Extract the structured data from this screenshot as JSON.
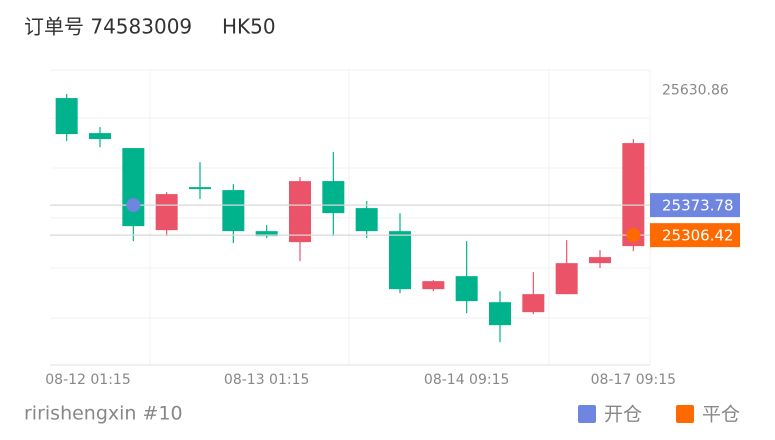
{
  "chart_data": {
    "type": "candlestick",
    "title": "订单号 74583009",
    "subtitle": "HK50",
    "footer": "ririshengxin #10",
    "categories": [
      "08-12 01:15",
      null,
      null,
      null,
      null,
      null,
      "08-13 01:15",
      null,
      null,
      null,
      null,
      null,
      "08-14 09:15",
      null,
      null,
      null,
      null,
      "08-17 09:15"
    ],
    "open": [
      25614.0,
      25535.4,
      25501.8,
      25317.6,
      25414.2,
      25407.5,
      25315.4,
      25290.7,
      25427.7,
      25367.1,
      25315.4,
      25185.2,
      25214.4,
      25156.0,
      25133.6,
      25174.0,
      25243.6,
      25281.8
    ],
    "close": [
      25533.2,
      25522.0,
      25326.6,
      25398.5,
      25409.7,
      25315.4,
      25304.2,
      25427.7,
      25355.8,
      25315.4,
      25185.2,
      25203.2,
      25158.3,
      25104.4,
      25174.0,
      25243.6,
      25257.1,
      25513.0
    ],
    "high": [
      25623.0,
      25548.9,
      25501.8,
      25403.0,
      25470.3,
      25420.9,
      25328.9,
      25436.7,
      25492.8,
      25382.8,
      25355.8,
      25205.4,
      25293.0,
      25180.7,
      25223.4,
      25295.2,
      25272.8,
      25522.0
    ],
    "low": [
      25517.5,
      25504.0,
      25293.0,
      25304.2,
      25387.3,
      25288.5,
      25299.7,
      25248.1,
      25304.2,
      25299.7,
      25176.2,
      25180.7,
      25131.3,
      25066.2,
      25129.1,
      25174.0,
      25232.4,
      25270.5
    ],
    "up_color": "#eb5468",
    "down_color": "#00b38c",
    "ylim": [
      25015,
      25677
    ],
    "yticks": [
      25630.86
    ],
    "markers": [
      {
        "name": "开仓",
        "color": "#6f86e0",
        "value": 25373.78,
        "index": 2
      },
      {
        "name": "平仓",
        "color": "#ff6a00",
        "value": 25306.42,
        "index": 17
      }
    ]
  }
}
